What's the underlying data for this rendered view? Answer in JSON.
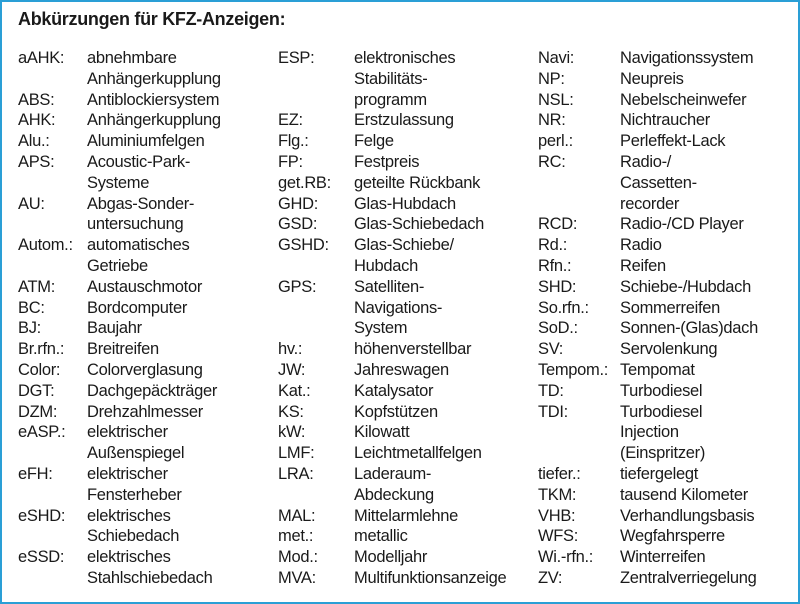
{
  "title": "Abkürzungen für KFZ-Anzeigen:",
  "border_color": "#2a9fd6",
  "columns": [
    [
      {
        "abbr": "aAHK:",
        "def": [
          "abnehmbare",
          "Anhängerkupplung"
        ]
      },
      {
        "abbr": "ABS:",
        "def": [
          "Antiblockiersystem"
        ]
      },
      {
        "abbr": "AHK:",
        "def": [
          "Anhängerkupplung"
        ]
      },
      {
        "abbr": "Alu.:",
        "def": [
          "Aluminiumfelgen"
        ]
      },
      {
        "abbr": "APS:",
        "def": [
          "Acoustic-Park-",
          "Systeme"
        ]
      },
      {
        "abbr": "AU:",
        "def": [
          "Abgas-Sonder-",
          "untersuchung"
        ]
      },
      {
        "abbr": "Autom.:",
        "def": [
          "automatisches",
          "Getriebe"
        ]
      },
      {
        "abbr": "ATM:",
        "def": [
          "Austauschmotor"
        ]
      },
      {
        "abbr": "BC:",
        "def": [
          "Bordcomputer"
        ]
      },
      {
        "abbr": "BJ:",
        "def": [
          "Baujahr"
        ]
      },
      {
        "abbr": "Br.rfn.:",
        "def": [
          "Breitreifen"
        ]
      },
      {
        "abbr": "Color:",
        "def": [
          "Colorverglasung"
        ]
      },
      {
        "abbr": "DGT:",
        "def": [
          "Dachgepäckträger"
        ]
      },
      {
        "abbr": "DZM:",
        "def": [
          "Drehzahlmesser"
        ]
      },
      {
        "abbr": "eASP.:",
        "def": [
          "elektrischer",
          "Außenspiegel"
        ]
      },
      {
        "abbr": "eFH:",
        "def": [
          "elektrischer",
          "Fensterheber"
        ]
      },
      {
        "abbr": "eSHD:",
        "def": [
          "elektrisches",
          "Schiebedach"
        ]
      },
      {
        "abbr": "eSSD:",
        "def": [
          "elektrisches",
          "Stahlschiebedach"
        ]
      }
    ],
    [
      {
        "abbr": "ESP:",
        "def": [
          "elektronisches",
          "Stabilitäts-",
          "programm"
        ]
      },
      {
        "abbr": "EZ:",
        "def": [
          "Erstzulassung"
        ]
      },
      {
        "abbr": "Flg.:",
        "def": [
          "Felge"
        ]
      },
      {
        "abbr": "FP:",
        "def": [
          "Festpreis"
        ]
      },
      {
        "abbr": "get.RB:",
        "def": [
          "geteilte Rückbank"
        ]
      },
      {
        "abbr": "GHD:",
        "def": [
          "Glas-Hubdach"
        ]
      },
      {
        "abbr": "GSD:",
        "def": [
          "Glas-Schiebedach"
        ]
      },
      {
        "abbr": "GSHD:",
        "def": [
          "Glas-Schiebe/",
          "Hubdach"
        ]
      },
      {
        "abbr": "GPS:",
        "def": [
          "Satelliten-",
          "Navigations-",
          "System"
        ]
      },
      {
        "abbr": "hv.:",
        "def": [
          "höhenverstellbar"
        ]
      },
      {
        "abbr": "JW:",
        "def": [
          "Jahreswagen"
        ]
      },
      {
        "abbr": "Kat.:",
        "def": [
          "Katalysator"
        ]
      },
      {
        "abbr": "KS:",
        "def": [
          "Kopfstützen"
        ]
      },
      {
        "abbr": "kW:",
        "def": [
          "Kilowatt"
        ]
      },
      {
        "abbr": "LMF:",
        "def": [
          "Leichtmetallfelgen"
        ]
      },
      {
        "abbr": "LRA:",
        "def": [
          "Laderaum-",
          "Abdeckung"
        ]
      },
      {
        "abbr": "MAL:",
        "def": [
          "Mittelarmlehne"
        ]
      },
      {
        "abbr": "met.:",
        "def": [
          "metallic"
        ]
      },
      {
        "abbr": "Mod.:",
        "def": [
          "Modelljahr"
        ]
      },
      {
        "abbr": "MVA:",
        "def": [
          "Multifunktionsanzeige"
        ]
      }
    ],
    [
      {
        "abbr": "Navi:",
        "def": [
          "Navigationssystem"
        ]
      },
      {
        "abbr": "NP:",
        "def": [
          "Neupreis"
        ]
      },
      {
        "abbr": "NSL:",
        "def": [
          "Nebelscheinwefer"
        ]
      },
      {
        "abbr": "NR:",
        "def": [
          "Nichtraucher"
        ]
      },
      {
        "abbr": "perl.:",
        "def": [
          "Perleffekt-Lack"
        ]
      },
      {
        "abbr": "RC:",
        "def": [
          "Radio-/",
          "Cassetten-",
          "recorder"
        ]
      },
      {
        "abbr": "RCD:",
        "def": [
          "Radio-/CD Player"
        ]
      },
      {
        "abbr": "Rd.:",
        "def": [
          "Radio"
        ]
      },
      {
        "abbr": "Rfn.:",
        "def": [
          "Reifen"
        ]
      },
      {
        "abbr": "SHD:",
        "def": [
          "Schiebe-/Hubdach"
        ]
      },
      {
        "abbr": "So.rfn.:",
        "def": [
          "Sommerreifen"
        ]
      },
      {
        "abbr": "SoD.:",
        "def": [
          "Sonnen-(Glas)dach"
        ]
      },
      {
        "abbr": "SV:",
        "def": [
          "Servolenkung"
        ]
      },
      {
        "abbr": "Tempom.:",
        "def": [
          "Tempomat"
        ]
      },
      {
        "abbr": "TD:",
        "def": [
          "Turbodiesel"
        ]
      },
      {
        "abbr": "TDI:",
        "def": [
          "Turbodiesel",
          "Injection",
          "(Einspritzer)"
        ]
      },
      {
        "abbr": "tiefer.:",
        "def": [
          "tiefergelegt"
        ]
      },
      {
        "abbr": "TKM:",
        "def": [
          "tausend Kilometer"
        ]
      },
      {
        "abbr": "VHB:",
        "def": [
          "Verhandlungsbasis"
        ]
      },
      {
        "abbr": "WFS:",
        "def": [
          "Wegfahrsperre"
        ]
      },
      {
        "abbr": "Wi.-rfn.:",
        "def": [
          "Winterreifen"
        ]
      },
      {
        "abbr": "ZV:",
        "def": [
          "Zentralverriegelung"
        ]
      }
    ]
  ]
}
